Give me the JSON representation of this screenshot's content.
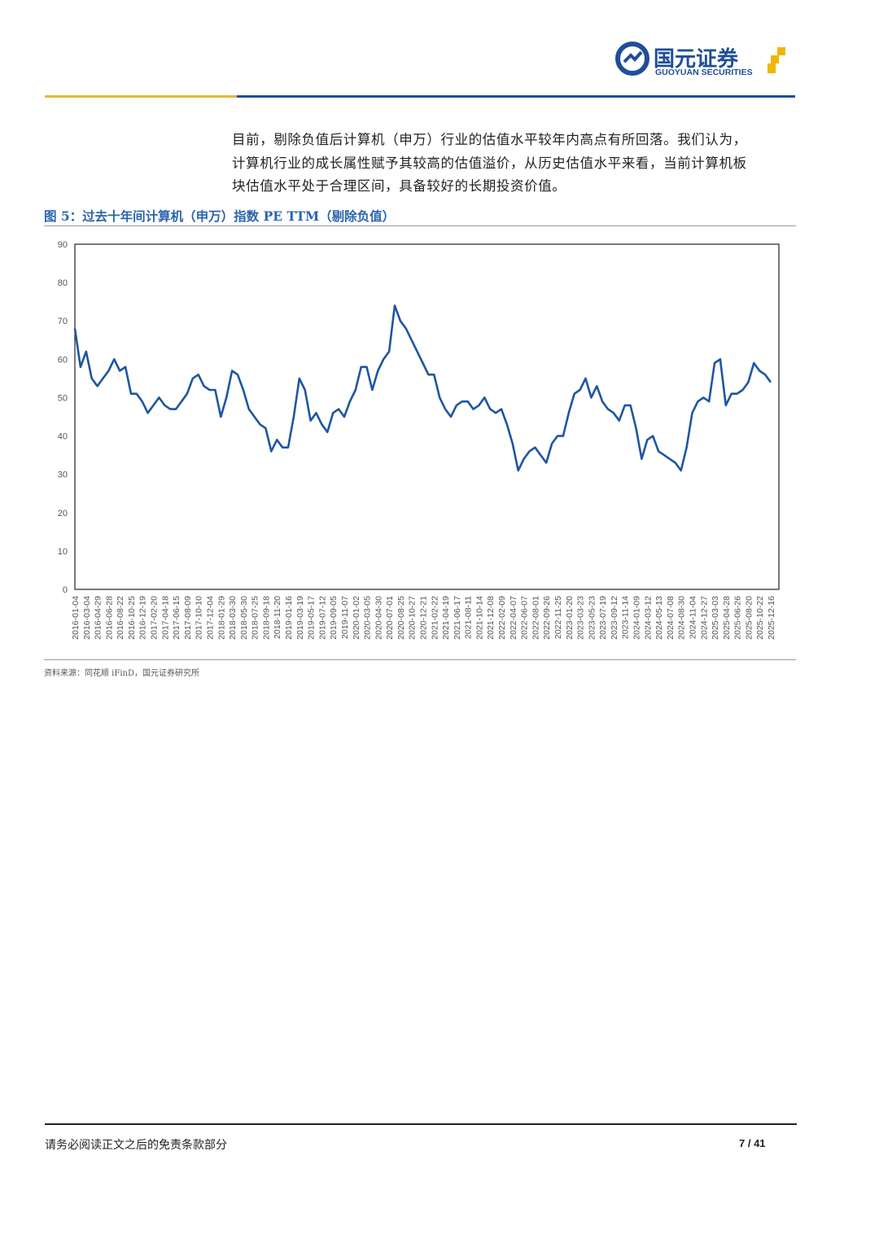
{
  "header": {
    "brand": "国元证券",
    "brand_en": "GUOYUAN SECURITIES"
  },
  "text": {
    "lines": [
      "目前，剔除负值后计算机（申万）行业的估值水平较年内高点有所回落。我们认为，",
      "计算机行业的成长属性赋予其较高的估值溢价，从历史估值水平来看，当前计算机板",
      "块估值水平处于合理区间，具备较好的长期投资价值。"
    ]
  },
  "figure": {
    "caption": "图 5：过去十年间计算机（申万）指数 PE TTM（剔除负值）",
    "source": "资料来源：同花顺 iFinD，国元证券研究所"
  },
  "chart_data": {
    "type": "line",
    "color": "#1f56a0",
    "grid": false,
    "ylim": [
      0,
      90
    ],
    "yticks": [
      0,
      10,
      20,
      30,
      40,
      50,
      60,
      70,
      80,
      90
    ],
    "categories": [
      "2016-01-04",
      null,
      "2016-03-04",
      null,
      "2016-04-29",
      null,
      "2016-06-28",
      null,
      "2016-08-22",
      null,
      "2016-10-25",
      null,
      "2016-12-19",
      null,
      "2017-02-20",
      null,
      "2017-04-18",
      null,
      "2017-06-15",
      null,
      "2017-08-09",
      null,
      "2017-10-10",
      null,
      "2017-12-04",
      null,
      "2018-01-29",
      null,
      "2018-03-30",
      null,
      "2018-05-30",
      null,
      "2018-07-25",
      null,
      "2018-09-18",
      null,
      "2018-11-20",
      null,
      "2019-01-16",
      null,
      "2019-03-19",
      null,
      "2019-05-17",
      null,
      "2019-07-12",
      null,
      "2019-09-05",
      null,
      "2019-11-07",
      null,
      "2020-01-02",
      null,
      "2020-03-05",
      null,
      "2020-04-30",
      null,
      "2020-07-01",
      null,
      "2020-08-25",
      null,
      "2020-10-27",
      null,
      "2020-12-21",
      null,
      "2021-02-22",
      null,
      "2021-04-19",
      null,
      "2021-06-17",
      null,
      "2021-08-11",
      null,
      "2021-10-14",
      null,
      "2021-12-08",
      null,
      "2022-02-09",
      null,
      "2022-04-07",
      null,
      "2022-06-07",
      null,
      "2022-08-01",
      null,
      "2022-09-26",
      null,
      "2022-11-25",
      null,
      "2023-01-20",
      null,
      "2023-03-23",
      null,
      "2023-05-23",
      null,
      "2023-07-19",
      null,
      "2023-09-12",
      null,
      "2023-11-14",
      null,
      "2024-01-09",
      null,
      "2024-03-12",
      null,
      "2024-05-13",
      null,
      "2024-07-08",
      null,
      "2024-08-30",
      null,
      "2024-11-04",
      null,
      "2024-12-27",
      null,
      "2025-03-03",
      null,
      "2025-04-28",
      null,
      "2025-06-26",
      null,
      "2025-08-20",
      null,
      "2025-10-22",
      null,
      "2025-12-16"
    ],
    "values": [
      68,
      58,
      62,
      55,
      53,
      55,
      57,
      60,
      57,
      58,
      51,
      51,
      49,
      46,
      48,
      50,
      48,
      47,
      47,
      49,
      51,
      55,
      56,
      53,
      52,
      52,
      45,
      50,
      57,
      56,
      52,
      47,
      45,
      43,
      42,
      36,
      39,
      37,
      37,
      45,
      55,
      52,
      44,
      46,
      43,
      41,
      46,
      47,
      45,
      49,
      52,
      58,
      58,
      52,
      57,
      60,
      62,
      74,
      70,
      68,
      65,
      62,
      59,
      56,
      56,
      50,
      47,
      45,
      48,
      49,
      49,
      47,
      48,
      50,
      47,
      46,
      47,
      43,
      38,
      31,
      34,
      36,
      37,
      35,
      33,
      38,
      40,
      40,
      46,
      51,
      52,
      55,
      50,
      53,
      49,
      47,
      46,
      44,
      48,
      48,
      42,
      34,
      39,
      40,
      36,
      35,
      34,
      33,
      31,
      37,
      46,
      49,
      50,
      49,
      59,
      60,
      48,
      51,
      51,
      52,
      54,
      59,
      57,
      56,
      54
    ]
  },
  "footer": {
    "disclaimer": "请务必阅读正文之后的免责条款部分",
    "page": "7 / 41"
  }
}
